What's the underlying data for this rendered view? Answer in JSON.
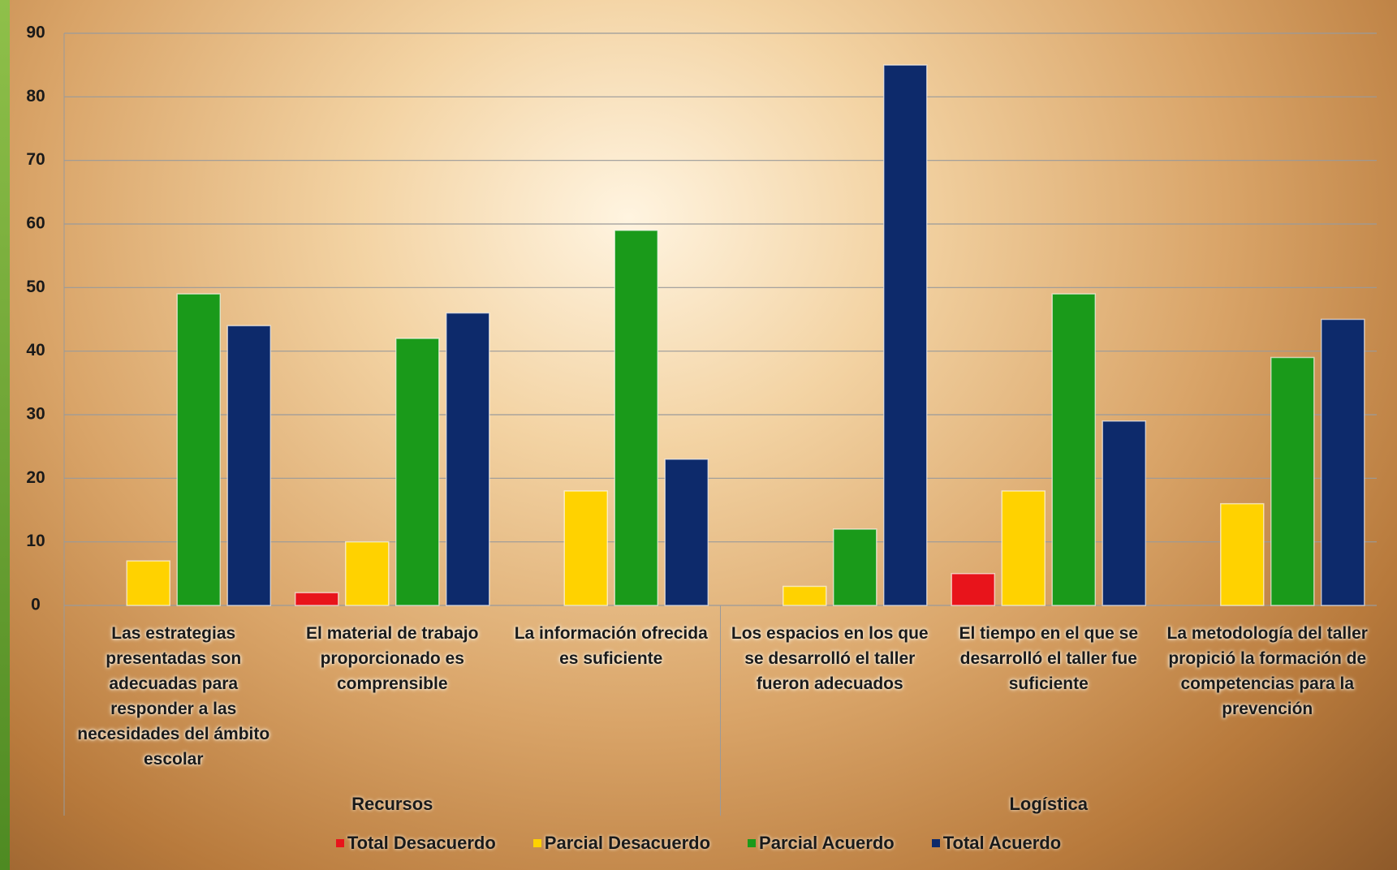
{
  "chart_data": {
    "type": "bar",
    "categories": [
      "Las estrategias presentadas son adecuadas para responder a las necesidades del ámbito escolar",
      "El material de trabajo proporcionado es comprensible",
      "La información ofrecida es suficiente",
      "Los espacios en los que se desarrolló el taller fueron adecuados",
      "El tiempo en el que se desarrolló el taller fue suficiente",
      "La metodología del taller propició la formación de competencias para la prevención"
    ],
    "groups": [
      "Recursos",
      "Logística"
    ],
    "series": [
      {
        "name": "Total Desacuerdo",
        "color": "#e8141b",
        "values": [
          0,
          2,
          0,
          0,
          5,
          0
        ]
      },
      {
        "name": "Parcial Desacuerdo",
        "color": "#ffd200",
        "values": [
          7,
          10,
          18,
          3,
          18,
          16
        ]
      },
      {
        "name": "Parcial Acuerdo",
        "color": "#1a9a1a",
        "values": [
          49,
          42,
          59,
          12,
          49,
          39
        ]
      },
      {
        "name": "Total Acuerdo",
        "color": "#0d2a6b",
        "values": [
          44,
          46,
          23,
          85,
          29,
          45
        ]
      }
    ],
    "ylim": [
      0,
      90
    ],
    "yticks": [
      0,
      10,
      20,
      30,
      40,
      50,
      60,
      70,
      80,
      90
    ],
    "grid": true,
    "legend": "bottom"
  }
}
